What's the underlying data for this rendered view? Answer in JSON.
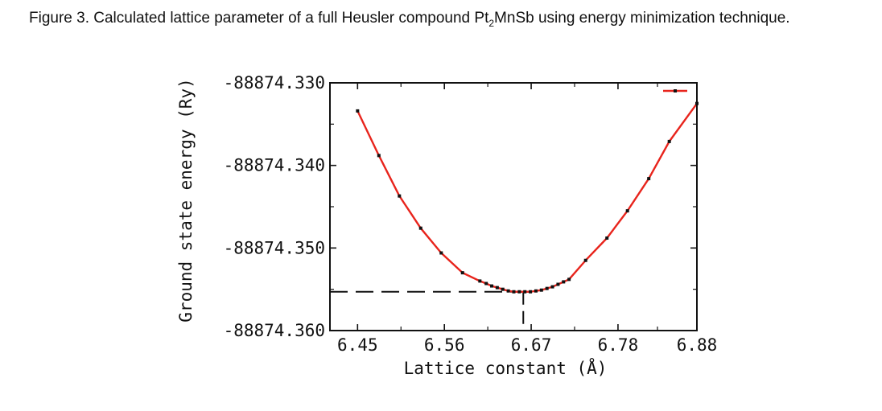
{
  "caption": {
    "label": "Figure 3",
    "text_before": ". Calculated lattice parameter of a full Heusler compound Pt",
    "subscript": "2",
    "text_after": "MnSb using energy minimization technique."
  },
  "chart_data": {
    "type": "line",
    "title": "",
    "xlabel": "Lattice constant (Å)",
    "ylabel": "Ground state energy (Ry)",
    "xlim": [
      6.415,
      6.88
    ],
    "ylim": [
      -88874.36,
      -88874.33
    ],
    "x_ticks": [
      6.45,
      6.56,
      6.67,
      6.78,
      6.88
    ],
    "x_tick_labels": [
      "6.45",
      "6.56",
      "6.67",
      "6.78",
      "6.88"
    ],
    "y_ticks": [
      -88874.33,
      -88874.34,
      -88874.35,
      -88874.36
    ],
    "y_tick_labels": [
      "-88874.330",
      "-88874.340",
      "-88874.350",
      "-88874.360"
    ],
    "legend_position": "top-right",
    "line_color": "#e8241c",
    "marker_color": "#111111",
    "minimum": {
      "x": 6.66,
      "y": -88874.3553
    },
    "series": [
      {
        "x": [
          6.45,
          6.477,
          6.503,
          6.53,
          6.556,
          6.583,
          6.605,
          6.613,
          6.62,
          6.627,
          6.634,
          6.641,
          6.648,
          6.655,
          6.662,
          6.669,
          6.676,
          6.683,
          6.69,
          6.697,
          6.704,
          6.711,
          6.718,
          6.739,
          6.766,
          6.792,
          6.819,
          6.845,
          6.88
        ],
        "y": [
          -88874.3334,
          -88874.3388,
          -88874.3437,
          -88874.3476,
          -88874.3506,
          -88874.353,
          -88874.354,
          -88874.3543,
          -88874.3546,
          -88874.3548,
          -88874.355,
          -88874.3552,
          -88874.3553,
          -88874.3553,
          -88874.3553,
          -88874.3553,
          -88874.3552,
          -88874.3551,
          -88874.3549,
          -88874.3547,
          -88874.3544,
          -88874.3541,
          -88874.3538,
          -88874.3515,
          -88874.3488,
          -88874.3455,
          -88874.3416,
          -88874.3371,
          -88874.3325
        ]
      }
    ]
  }
}
